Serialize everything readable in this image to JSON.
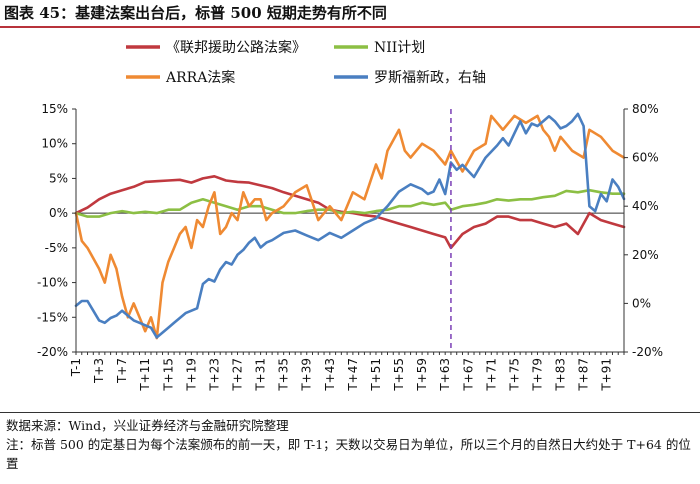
{
  "figure_title": "图表 45：基建法案出台后，标普 500 短期走势有所不同",
  "source_note": "数据来源：Wind，兴业证券经济与金融研究院整理",
  "footnote": "注：标普 500 的定基日为每个法案颁布的前一天，即 T-1；天数以交易日为单位，所以三个月的自然日大约处于 T+64 的位置",
  "chart_data": {
    "type": "line",
    "x_tick_labels": [
      "T-1",
      "T+3",
      "T+7",
      "T+11",
      "T+15",
      "T+19",
      "T+23",
      "T+27",
      "T+31",
      "T+35",
      "T+39",
      "T+43",
      "T+47",
      "T+51",
      "T+55",
      "T+59",
      "T+63",
      "T+67",
      "T+71",
      "T+75",
      "T+79",
      "T+83",
      "T+87",
      "T+91"
    ],
    "x_range": [
      -1,
      94
    ],
    "y_left": {
      "ticks": [
        "15%",
        "10%",
        "5%",
        "0%",
        "-5%",
        "-10%",
        "-15%",
        "-20%"
      ],
      "range": [
        -20,
        15
      ],
      "unit": "%"
    },
    "y_right": {
      "ticks": [
        "80%",
        "60%",
        "40%",
        "20%",
        "0%",
        "-20%"
      ],
      "range": [
        -20,
        80
      ],
      "unit": "%"
    },
    "reference_line": {
      "x": 64,
      "style": "dashed",
      "color": "#7b3fb5"
    },
    "legend": [
      {
        "label": "《联邦援助公路法案》",
        "color": "#c0393f"
      },
      {
        "label": "NII计划",
        "color": "#8cbf44"
      },
      {
        "label": "ARRA法案",
        "color": "#ef8a33"
      },
      {
        "label": "罗斯福新政，右轴",
        "color": "#4a7fc1"
      }
    ],
    "series": [
      {
        "name": "《联邦援助公路法案》",
        "axis": "left",
        "color": "#c0393f",
        "x": [
          -1,
          1,
          3,
          5,
          7,
          9,
          11,
          13,
          15,
          17,
          19,
          21,
          23,
          25,
          27,
          29,
          31,
          33,
          35,
          37,
          39,
          41,
          43,
          45,
          47,
          49,
          51,
          53,
          55,
          57,
          59,
          61,
          63,
          64,
          66,
          68,
          70,
          72,
          74,
          76,
          78,
          80,
          82,
          84,
          86,
          88,
          90,
          92,
          94
        ],
        "values": [
          0,
          0.8,
          2,
          2.8,
          3.3,
          3.8,
          4.5,
          4.6,
          4.7,
          4.8,
          4.4,
          5,
          5.3,
          4.7,
          4.5,
          4.4,
          4,
          3.6,
          3,
          2.5,
          2,
          1.5,
          0.5,
          0.2,
          0,
          -0.3,
          -0.5,
          -1,
          -1.5,
          -2,
          -2.5,
          -3,
          -3.5,
          -5,
          -3,
          -2,
          -1.5,
          -0.5,
          -0.5,
          -1,
          -1,
          -1.5,
          -2,
          -1.5,
          -3,
          0,
          -1,
          -1.5,
          -2
        ]
      },
      {
        "name": "NII计划",
        "axis": "left",
        "color": "#8cbf44",
        "x": [
          -1,
          1,
          3,
          5,
          7,
          9,
          11,
          13,
          15,
          17,
          19,
          21,
          23,
          25,
          27,
          29,
          31,
          33,
          35,
          37,
          39,
          41,
          43,
          45,
          47,
          49,
          51,
          53,
          55,
          57,
          59,
          61,
          63,
          64,
          66,
          68,
          70,
          72,
          74,
          76,
          78,
          80,
          82,
          84,
          86,
          88,
          90,
          92,
          94
        ],
        "values": [
          0,
          -0.5,
          -0.5,
          0,
          0.3,
          0,
          0.2,
          0,
          0.5,
          0.5,
          1.5,
          2,
          1.5,
          1,
          0.5,
          1,
          1,
          0.5,
          0,
          0,
          0.3,
          0.5,
          0.5,
          0,
          0.2,
          0,
          0.3,
          0.5,
          1,
          1,
          1.5,
          1.2,
          1.5,
          0.5,
          1,
          1.2,
          1.5,
          2,
          1.8,
          2,
          2,
          2.3,
          2.5,
          3.2,
          3,
          3.3,
          3,
          2.8,
          2.8
        ]
      },
      {
        "name": "ARRA法案",
        "axis": "left",
        "color": "#ef8a33",
        "x": [
          -1,
          0,
          1,
          3,
          4,
          5,
          6,
          7,
          8,
          9,
          10,
          11,
          12,
          13,
          14,
          15,
          16,
          17,
          18,
          19,
          20,
          21,
          22,
          23,
          24,
          25,
          26,
          27,
          28,
          29,
          30,
          31,
          32,
          33,
          35,
          37,
          39,
          41,
          43,
          45,
          47,
          49,
          51,
          52,
          53,
          55,
          56,
          57,
          59,
          61,
          63,
          64,
          66,
          68,
          70,
          71,
          73,
          75,
          77,
          79,
          80,
          81,
          82,
          83,
          85,
          87,
          88,
          90,
          92,
          94
        ],
        "values": [
          0,
          -4,
          -5,
          -8,
          -10,
          -6,
          -8,
          -12,
          -15,
          -13,
          -15,
          -17,
          -15,
          -18,
          -10,
          -7,
          -5,
          -3,
          -2,
          -5,
          -1,
          -2,
          1,
          3,
          -3,
          -2,
          0,
          -1,
          3,
          1,
          2,
          2,
          -1,
          0,
          1,
          3,
          4,
          -1,
          1,
          -1,
          3,
          2,
          7,
          5,
          9,
          12,
          9,
          8,
          10,
          9,
          7,
          9,
          6,
          9,
          10,
          14,
          12,
          14,
          13,
          14,
          12,
          11,
          9,
          11,
          9,
          8,
          12,
          11,
          9,
          8
        ]
      },
      {
        "name": "罗斯福新政，右轴",
        "axis": "right",
        "color": "#4a7fc1",
        "x": [
          -1,
          0,
          1,
          2,
          3,
          4,
          5,
          6,
          7,
          8,
          9,
          10,
          11,
          12,
          13,
          14,
          15,
          16,
          17,
          18,
          19,
          20,
          21,
          22,
          23,
          24,
          25,
          26,
          27,
          28,
          29,
          30,
          31,
          32,
          33,
          35,
          37,
          39,
          41,
          43,
          45,
          47,
          49,
          51,
          53,
          55,
          57,
          59,
          60,
          61,
          62,
          63,
          64,
          65,
          66,
          68,
          70,
          72,
          73,
          74,
          75,
          76,
          77,
          78,
          79,
          80,
          81,
          82,
          83,
          84,
          85,
          86,
          87,
          88,
          89,
          90,
          91,
          92,
          93,
          94
        ],
        "values": [
          -1,
          1,
          1,
          -3,
          -7,
          -8,
          -6,
          -5,
          -3,
          -5,
          -7,
          -8,
          -9,
          -10,
          -14,
          -12,
          -10,
          -8,
          -6,
          -4,
          -3,
          -2,
          8,
          10,
          9,
          14,
          17,
          16,
          20,
          22,
          25,
          27,
          23,
          25,
          26,
          29,
          30,
          28,
          26,
          29,
          27,
          30,
          33,
          35,
          40,
          46,
          49,
          47,
          45,
          46,
          51,
          45,
          58,
          55,
          57,
          52,
          60,
          65,
          68,
          65,
          70,
          75,
          70,
          74,
          73,
          75,
          77,
          75,
          72,
          73,
          75,
          78,
          73,
          40,
          38,
          45,
          42,
          51,
          48,
          43
        ]
      }
    ]
  }
}
